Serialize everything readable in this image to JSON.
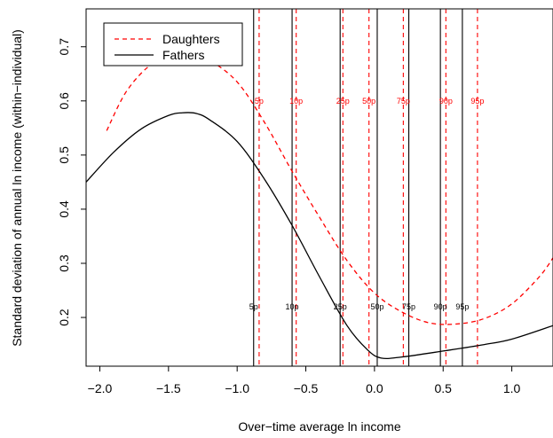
{
  "chart_data": {
    "type": "line",
    "xlabel": "Over−time average ln income",
    "ylabel": "Standard deviation of annual ln income (within−individual)",
    "xlim": [
      -2.1,
      1.3
    ],
    "ylim": [
      0.11,
      0.77
    ],
    "x_ticks": [
      -2.0,
      -1.5,
      -1.0,
      -0.5,
      0.0,
      0.5,
      1.0
    ],
    "x_tick_labels": [
      "−2.0",
      "−1.5",
      "−1.0",
      "−0.5",
      "0.0",
      "0.5",
      "1.0"
    ],
    "y_ticks": [
      0.2,
      0.3,
      0.4,
      0.5,
      0.6,
      0.7
    ],
    "y_tick_labels": [
      "0.2",
      "0.3",
      "0.4",
      "0.5",
      "0.6",
      "0.7"
    ],
    "legend": {
      "placement": "top-left"
    },
    "series": [
      {
        "name": "Daughters",
        "color": "#ff0000",
        "dash": "dashed",
        "x": [
          -1.95,
          -1.8,
          -1.6,
          -1.4,
          -1.3,
          -1.2,
          -1.0,
          -0.8,
          -0.6,
          -0.4,
          -0.2,
          0.0,
          0.2,
          0.4,
          0.6,
          0.8,
          1.0,
          1.2,
          1.3
        ],
        "y": [
          0.545,
          0.62,
          0.672,
          0.685,
          0.682,
          0.675,
          0.635,
          0.56,
          0.47,
          0.385,
          0.305,
          0.245,
          0.21,
          0.19,
          0.188,
          0.198,
          0.225,
          0.275,
          0.31
        ]
      },
      {
        "name": "Fathers",
        "color": "#000000",
        "dash": "solid",
        "x": [
          -2.1,
          -1.9,
          -1.7,
          -1.5,
          -1.4,
          -1.3,
          -1.2,
          -1.0,
          -0.8,
          -0.6,
          -0.4,
          -0.2,
          -0.05,
          0.05,
          0.2,
          0.5,
          0.8,
          1.0,
          1.3
        ],
        "y": [
          0.45,
          0.505,
          0.548,
          0.573,
          0.578,
          0.577,
          0.565,
          0.525,
          0.455,
          0.37,
          0.275,
          0.185,
          0.14,
          0.125,
          0.127,
          0.138,
          0.15,
          0.16,
          0.185
        ]
      }
    ],
    "percentile_lines": {
      "daughters": {
        "color": "#ff0000",
        "label_y": 0.6,
        "marks": [
          {
            "label": "5p",
            "x": -0.84
          },
          {
            "label": "10p",
            "x": -0.57
          },
          {
            "label": "25p",
            "x": -0.23
          },
          {
            "label": "50p",
            "x": -0.04
          },
          {
            "label": "75p",
            "x": 0.21
          },
          {
            "label": "90p",
            "x": 0.52
          },
          {
            "label": "95p",
            "x": 0.75
          }
        ]
      },
      "fathers": {
        "color": "#000000",
        "label_y": 0.22,
        "marks": [
          {
            "label": "5p",
            "x": -0.88
          },
          {
            "label": "10p",
            "x": -0.6
          },
          {
            "label": "25p",
            "x": -0.25
          },
          {
            "label": "50p",
            "x": 0.02
          },
          {
            "label": "75p",
            "x": 0.25
          },
          {
            "label": "90p",
            "x": 0.48
          },
          {
            "label": "95p",
            "x": 0.64
          }
        ]
      }
    }
  }
}
